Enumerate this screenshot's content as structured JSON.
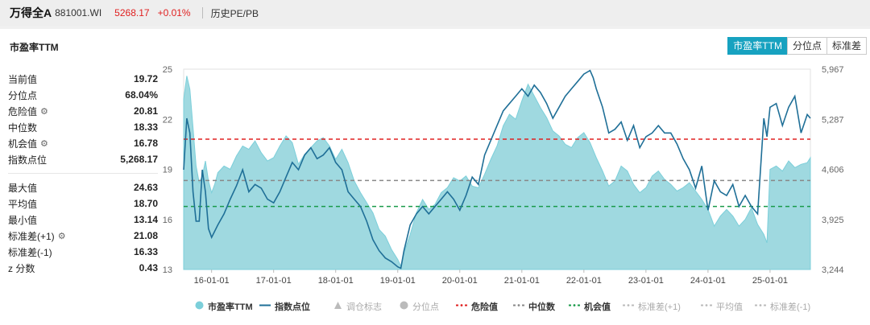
{
  "header": {
    "name": "万得全A",
    "code": "881001.WI",
    "price": "5268.17",
    "change": "+0.01%",
    "history_label": "历史PE/PB"
  },
  "panel": {
    "title": "市盈率TTM"
  },
  "toggle": [
    {
      "label": "市盈率TTM",
      "active": true
    },
    {
      "label": "分位点",
      "active": false
    },
    {
      "label": "标准差",
      "active": false
    }
  ],
  "stats_top": [
    {
      "label": "当前值",
      "value": "19.72",
      "gear": false
    },
    {
      "label": "分位点",
      "value": "68.04%",
      "gear": false
    },
    {
      "label": "危险值",
      "value": "20.81",
      "gear": true
    },
    {
      "label": "中位数",
      "value": "18.33",
      "gear": false
    },
    {
      "label": "机会值",
      "value": "16.78",
      "gear": true
    },
    {
      "label": "指数点位",
      "value": "5,268.17",
      "gear": false
    }
  ],
  "stats_bottom": [
    {
      "label": "最大值",
      "value": "24.63",
      "gear": false
    },
    {
      "label": "平均值",
      "value": "18.70",
      "gear": false
    },
    {
      "label": "最小值",
      "value": "13.14",
      "gear": false
    },
    {
      "label": "标准差(+1)",
      "value": "21.08",
      "gear": true
    },
    {
      "label": "标准差(-1)",
      "value": "16.33",
      "gear": false
    },
    {
      "label": "z 分数",
      "value": "0.43",
      "gear": false
    }
  ],
  "legend": [
    {
      "label": "市盈率TTM",
      "marker": "dot",
      "color": "#7ccfda",
      "active": true
    },
    {
      "label": "指数点位",
      "marker": "line",
      "color": "#1f6f97",
      "active": true
    },
    {
      "label": "调仓标志",
      "marker": "triangle",
      "color": "#bbbbbb",
      "active": false
    },
    {
      "label": "分位点",
      "marker": "dot",
      "color": "#bbbbbb",
      "active": false
    },
    {
      "label": "危险值",
      "marker": "dash",
      "color": "#e02020",
      "active": true
    },
    {
      "label": "中位数",
      "marker": "dash",
      "color": "#888888",
      "active": true
    },
    {
      "label": "机会值",
      "marker": "dash",
      "color": "#1a9a4a",
      "active": true
    },
    {
      "label": "标准差(+1)",
      "marker": "dash",
      "color": "#bbbbbb",
      "active": false
    },
    {
      "label": "平均值",
      "marker": "dash",
      "color": "#bbbbbb",
      "active": false
    },
    {
      "label": "标准差(-1)",
      "marker": "dash",
      "color": "#bbbbbb",
      "active": false
    }
  ],
  "chart_data": {
    "type": "area",
    "x_tick_labels": [
      "16-01-01",
      "17-01-01",
      "18-01-01",
      "19-01-01",
      "20-01-01",
      "21-01-01",
      "22-01-01",
      "23-01-01",
      "24-01-01",
      "25-01-01"
    ],
    "x_range": [
      2015.55,
      2025.65
    ],
    "y_left": {
      "ticks": [
        13,
        16,
        19,
        22,
        25
      ],
      "range": [
        13,
        25
      ]
    },
    "y_right": {
      "tick_labels": [
        "3,244",
        "3,925",
        "4,606",
        "5,287",
        "5,967"
      ],
      "range": [
        3244,
        5967
      ]
    },
    "reference_lines": {
      "danger": 20.81,
      "median": 18.33,
      "opportunity": 16.78
    },
    "pe_series": {
      "name": "市盈率TTM",
      "x": [
        2015.55,
        2015.6,
        2015.65,
        2015.7,
        2015.75,
        2015.8,
        2015.85,
        2015.9,
        2015.95,
        2016.0,
        2016.05,
        2016.1,
        2016.2,
        2016.3,
        2016.4,
        2016.5,
        2016.6,
        2016.7,
        2016.8,
        2016.9,
        2017.0,
        2017.1,
        2017.2,
        2017.3,
        2017.4,
        2017.5,
        2017.6,
        2017.7,
        2017.8,
        2017.9,
        2018.0,
        2018.1,
        2018.2,
        2018.3,
        2018.4,
        2018.5,
        2018.6,
        2018.7,
        2018.8,
        2018.9,
        2019.0,
        2019.05,
        2019.1,
        2019.2,
        2019.3,
        2019.4,
        2019.5,
        2019.6,
        2019.7,
        2019.8,
        2019.9,
        2020.0,
        2020.1,
        2020.2,
        2020.3,
        2020.4,
        2020.5,
        2020.6,
        2020.7,
        2020.8,
        2020.9,
        2021.0,
        2021.1,
        2021.2,
        2021.3,
        2021.4,
        2021.5,
        2021.6,
        2021.7,
        2021.8,
        2021.9,
        2022.0,
        2022.1,
        2022.2,
        2022.3,
        2022.4,
        2022.5,
        2022.6,
        2022.7,
        2022.8,
        2022.9,
        2023.0,
        2023.1,
        2023.2,
        2023.3,
        2023.4,
        2023.5,
        2023.6,
        2023.7,
        2023.8,
        2023.9,
        2024.0,
        2024.05,
        2024.1,
        2024.2,
        2024.3,
        2024.4,
        2024.5,
        2024.6,
        2024.7,
        2024.8,
        2024.9,
        2024.95,
        2025.0,
        2025.1,
        2025.2,
        2025.3,
        2025.4,
        2025.5,
        2025.6,
        2025.65
      ],
      "values": [
        23.2,
        24.6,
        23.8,
        21.5,
        19.2,
        18.2,
        18.6,
        19.5,
        18.3,
        17.6,
        18.1,
        18.8,
        19.2,
        19.0,
        19.8,
        20.4,
        20.2,
        20.7,
        20.0,
        19.5,
        19.7,
        20.4,
        21.0,
        20.6,
        19.3,
        19.9,
        20.3,
        20.7,
        20.9,
        20.4,
        19.6,
        20.2,
        19.4,
        18.3,
        17.6,
        17.0,
        16.4,
        15.4,
        15.0,
        14.2,
        13.6,
        13.2,
        14.0,
        15.1,
        16.4,
        17.2,
        16.6,
        16.9,
        17.6,
        17.9,
        18.5,
        18.3,
        18.6,
        18.0,
        17.9,
        18.7,
        19.6,
        20.4,
        21.6,
        22.3,
        22.0,
        23.1,
        24.1,
        23.4,
        22.7,
        22.1,
        21.3,
        21.0,
        20.5,
        20.3,
        20.9,
        21.2,
        20.6,
        19.7,
        18.9,
        18.0,
        18.3,
        19.2,
        18.9,
        18.1,
        17.6,
        17.9,
        18.6,
        18.9,
        18.4,
        18.1,
        17.7,
        17.9,
        18.2,
        17.7,
        17.2,
        16.6,
        16.1,
        15.6,
        16.2,
        16.6,
        16.2,
        15.6,
        16.0,
        16.7,
        15.7,
        15.1,
        14.6,
        19.0,
        19.2,
        18.9,
        19.5,
        19.1,
        19.3,
        19.4,
        19.7
      ]
    },
    "index_series": {
      "name": "指数点位",
      "x": [
        2015.55,
        2015.6,
        2015.65,
        2015.7,
        2015.75,
        2015.8,
        2015.85,
        2015.9,
        2015.95,
        2016.0,
        2016.1,
        2016.2,
        2016.3,
        2016.4,
        2016.5,
        2016.6,
        2016.7,
        2016.8,
        2016.9,
        2017.0,
        2017.1,
        2017.2,
        2017.3,
        2017.4,
        2017.5,
        2017.6,
        2017.7,
        2017.8,
        2017.9,
        2018.0,
        2018.1,
        2018.2,
        2018.3,
        2018.4,
        2018.5,
        2018.6,
        2018.7,
        2018.8,
        2018.9,
        2019.0,
        2019.05,
        2019.1,
        2019.2,
        2019.3,
        2019.4,
        2019.5,
        2019.6,
        2019.7,
        2019.8,
        2019.9,
        2020.0,
        2020.1,
        2020.2,
        2020.3,
        2020.4,
        2020.5,
        2020.6,
        2020.7,
        2020.8,
        2020.9,
        2021.0,
        2021.1,
        2021.2,
        2021.3,
        2021.4,
        2021.5,
        2021.6,
        2021.7,
        2021.8,
        2021.9,
        2022.0,
        2022.1,
        2022.15,
        2022.2,
        2022.3,
        2022.4,
        2022.5,
        2022.6,
        2022.7,
        2022.8,
        2022.9,
        2023.0,
        2023.1,
        2023.2,
        2023.3,
        2023.4,
        2023.5,
        2023.6,
        2023.7,
        2023.8,
        2023.9,
        2024.0,
        2024.05,
        2024.1,
        2024.2,
        2024.3,
        2024.4,
        2024.5,
        2024.6,
        2024.7,
        2024.8,
        2024.9,
        2024.95,
        2025.0,
        2025.1,
        2025.2,
        2025.3,
        2025.4,
        2025.5,
        2025.6,
        2025.65
      ],
      "values": [
        4600,
        5300,
        5100,
        4300,
        3900,
        3900,
        4600,
        4300,
        3800,
        3680,
        3850,
        4000,
        4200,
        4380,
        4600,
        4300,
        4400,
        4350,
        4200,
        4150,
        4300,
        4500,
        4700,
        4600,
        4800,
        4900,
        4750,
        4800,
        4900,
        4700,
        4600,
        4300,
        4200,
        4100,
        3900,
        3650,
        3500,
        3400,
        3350,
        3280,
        3260,
        3500,
        3850,
        4000,
        4100,
        4000,
        4100,
        4200,
        4300,
        4200,
        4050,
        4250,
        4500,
        4400,
        4800,
        5000,
        5200,
        5400,
        5500,
        5600,
        5700,
        5600,
        5750,
        5650,
        5500,
        5300,
        5450,
        5600,
        5700,
        5800,
        5900,
        5950,
        5850,
        5700,
        5450,
        5100,
        5150,
        5250,
        5000,
        5200,
        4900,
        5050,
        5100,
        5200,
        5100,
        5100,
        4950,
        4750,
        4600,
        4350,
        4650,
        4050,
        4250,
        4450,
        4300,
        4250,
        4400,
        4100,
        4250,
        4100,
        4000,
        5300,
        5050,
        5450,
        5500,
        5200,
        5450,
        5600,
        5100,
        5350,
        5300
      ]
    }
  }
}
